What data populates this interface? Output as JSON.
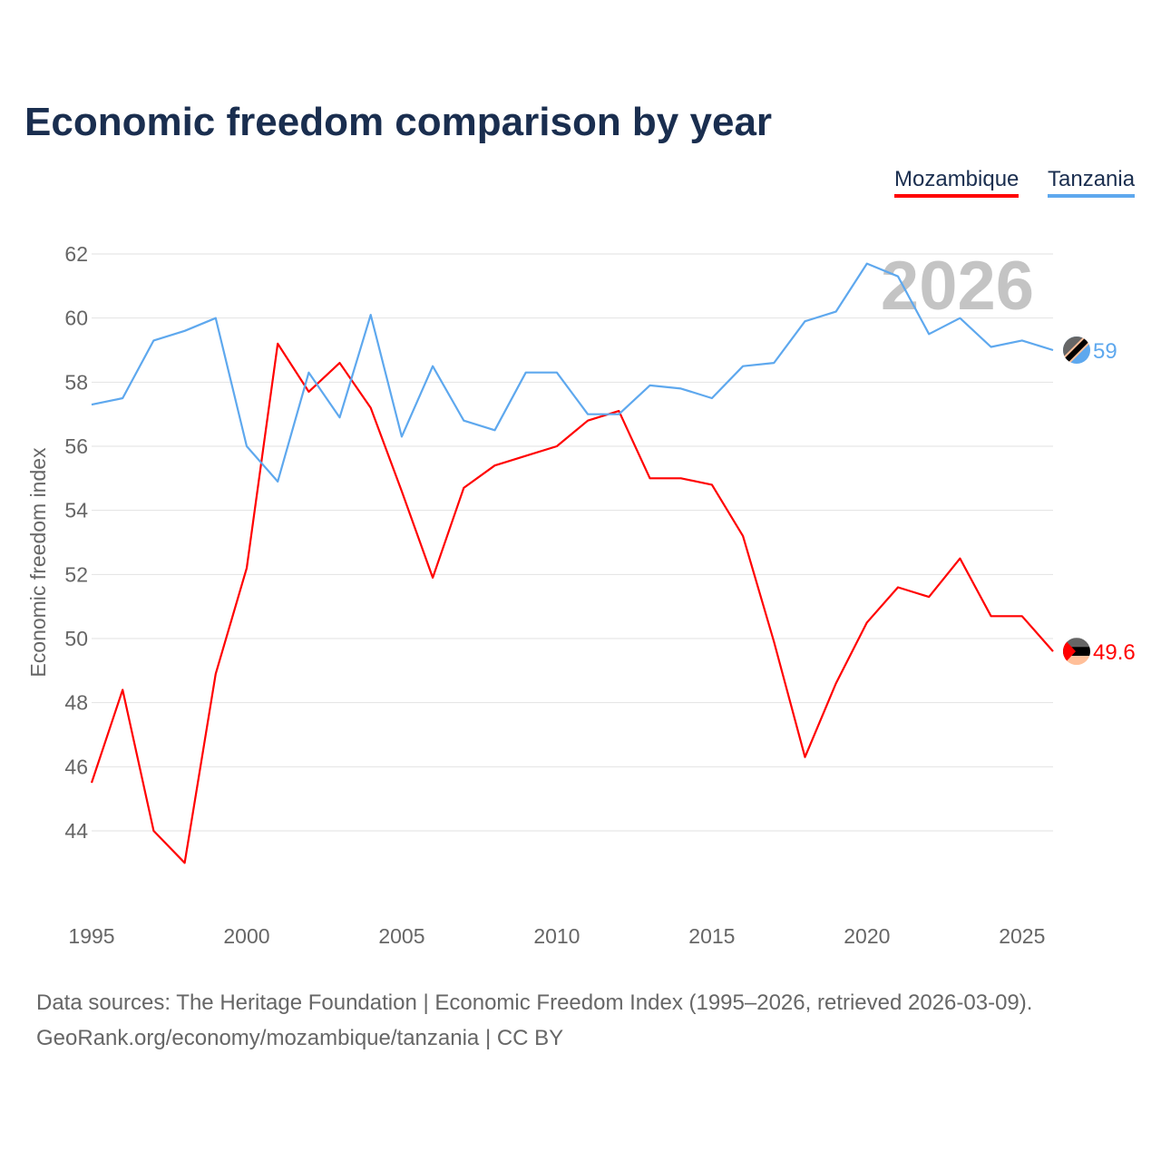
{
  "chart_data": {
    "type": "line",
    "title": "Economic freedom comparison by year",
    "xlabel": "",
    "ylabel": "Economic freedom index",
    "ylim": [
      42,
      62
    ],
    "xlim": [
      1995,
      2026
    ],
    "yticks": [
      44,
      46,
      48,
      50,
      52,
      54,
      56,
      58,
      60,
      62
    ],
    "xticks": [
      1995,
      2000,
      2005,
      2010,
      2015,
      2020,
      2025
    ],
    "grid": true,
    "legend_position": "top-right",
    "watermark_year": "2026",
    "x": [
      1995,
      1996,
      1997,
      1998,
      1999,
      2000,
      2001,
      2002,
      2003,
      2004,
      2005,
      2006,
      2007,
      2008,
      2009,
      2010,
      2011,
      2012,
      2013,
      2014,
      2015,
      2016,
      2017,
      2018,
      2019,
      2020,
      2021,
      2022,
      2023,
      2024,
      2025,
      2026
    ],
    "series": [
      {
        "name": "Mozambique",
        "color": "#ff0000",
        "end_label": "49.6",
        "values": [
          45.5,
          48.4,
          44.0,
          43.0,
          48.9,
          52.2,
          59.2,
          57.7,
          58.6,
          57.2,
          54.6,
          51.9,
          54.7,
          55.4,
          55.7,
          56.0,
          56.8,
          57.1,
          55.0,
          55.0,
          54.8,
          53.2,
          49.9,
          46.3,
          48.6,
          50.5,
          51.6,
          51.3,
          52.5,
          50.7,
          50.7,
          49.6
        ]
      },
      {
        "name": "Tanzania",
        "color": "#5ea8ee",
        "end_label": "59",
        "values": [
          57.3,
          57.5,
          59.3,
          59.6,
          60.0,
          56.0,
          54.9,
          58.3,
          56.9,
          60.1,
          56.3,
          58.5,
          56.8,
          56.5,
          58.3,
          58.3,
          57.0,
          57.0,
          57.9,
          57.8,
          57.5,
          58.5,
          58.6,
          59.9,
          60.2,
          61.7,
          61.3,
          59.5,
          60.0,
          59.1,
          59.3,
          59.0
        ]
      }
    ]
  },
  "footer": {
    "line1": "Data sources: The Heritage Foundation | Economic Freedom Index (1995–2026, retrieved 2026-03-09).",
    "line2": "GeoRank.org/economy/mozambique/tanzania | CC BY"
  }
}
